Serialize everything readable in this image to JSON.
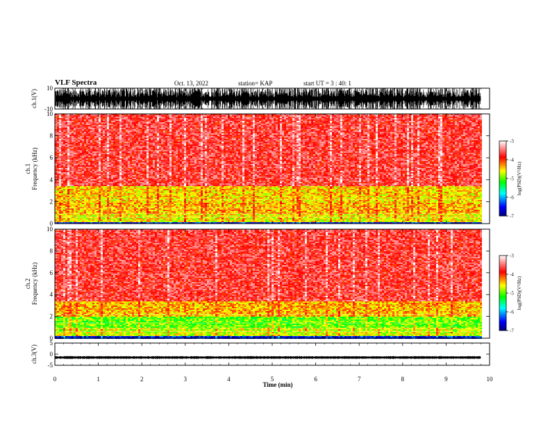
{
  "header": {
    "title": "VLF Spectra",
    "date": "Oct. 13, 2022",
    "station": "station= KAP",
    "start": "start UT =  3 : 40: 1"
  },
  "chart_data": [
    {
      "type": "line",
      "id": "ch1-waveform",
      "ylabel": "ch.1(V)",
      "ylim": [
        -10,
        10
      ],
      "yticks": [
        10,
        -10
      ],
      "xlim": [
        0,
        10
      ],
      "x_end": 9.8,
      "description_series": "dense noise waveform, approx amplitude 1..10 V",
      "color": "#000000"
    },
    {
      "type": "heatmap",
      "id": "ch1-spectrogram",
      "ylabel": "ch.1 Frequency (kHz)",
      "ylim": [
        0,
        10
      ],
      "yticks": [
        0,
        2,
        4,
        6,
        8,
        10
      ],
      "xlim": [
        0,
        10
      ],
      "x_end": 9.8,
      "intensity_bands_khz": [
        {
          "from": 0.0,
          "to": 0.2,
          "level": -6.5
        },
        {
          "from": 0.2,
          "to": 1.0,
          "level": -4.6
        },
        {
          "from": 1.0,
          "to": 2.0,
          "level": -4.4
        },
        {
          "from": 2.0,
          "to": 3.5,
          "level": -4.5
        },
        {
          "from": 3.5,
          "to": 10.0,
          "level": -3.7
        }
      ]
    },
    {
      "type": "heatmap",
      "id": "ch2-spectrogram",
      "ylabel": "ch.2 Frequency (kHz)",
      "ylim": [
        0,
        10
      ],
      "yticks": [
        0,
        2,
        4,
        6,
        8,
        10
      ],
      "xlim": [
        0,
        10
      ],
      "x_end": 9.8,
      "intensity_bands_khz": [
        {
          "from": 0.0,
          "to": 0.2,
          "level": -6.5
        },
        {
          "from": 0.2,
          "to": 1.0,
          "level": -4.7
        },
        {
          "from": 1.0,
          "to": 2.0,
          "level": -5.0
        },
        {
          "from": 2.0,
          "to": 3.5,
          "level": -4.4
        },
        {
          "from": 3.5,
          "to": 10.0,
          "level": -3.7
        }
      ]
    },
    {
      "type": "line",
      "id": "ch3-waveform",
      "ylabel": "ch.3(V)",
      "ylim": [
        -5,
        5
      ],
      "yticks": [
        5,
        0,
        -5
      ],
      "xlim": [
        0,
        10
      ],
      "x_end": 9.8,
      "baseline": -1.5,
      "amplitude": 0.5,
      "color": "#000000",
      "xlabel": "Time (min)",
      "xticks": [
        0,
        1,
        2,
        3,
        4,
        5,
        6,
        7,
        8,
        9,
        10
      ]
    }
  ],
  "colorbar": {
    "label": "log(PSD)(V²/Hz)",
    "range": [
      -7,
      -3
    ],
    "ticks": [
      -3,
      -4,
      -5,
      -6,
      -7
    ],
    "stops": [
      "#00007a",
      "#0000ff",
      "#00ffff",
      "#00ff00",
      "#ffff00",
      "#ff0000",
      "#ffffff"
    ]
  }
}
